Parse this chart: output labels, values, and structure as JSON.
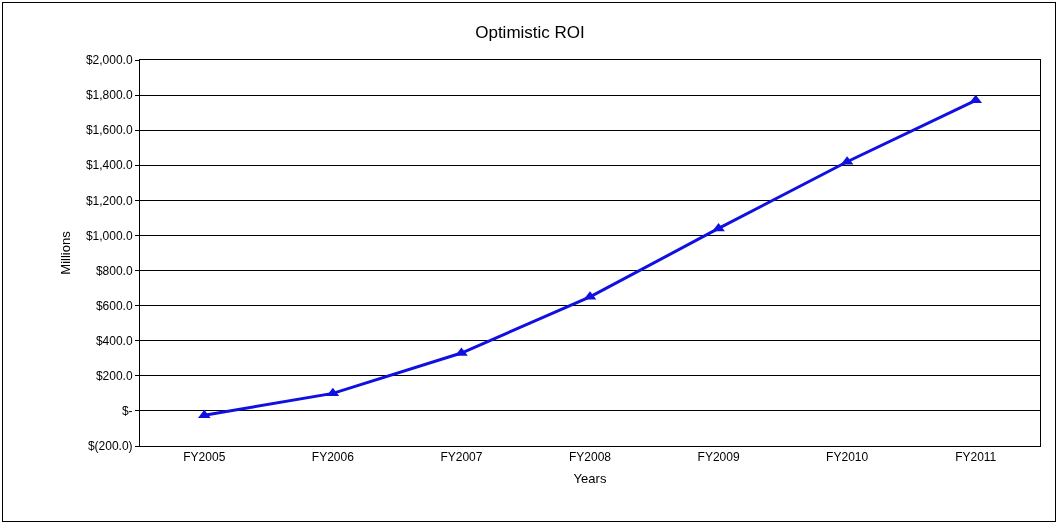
{
  "chart_data": {
    "type": "line",
    "title": "Optimistic ROI",
    "xlabel": "Years",
    "ylabel": "Millions",
    "categories": [
      "FY2005",
      "FY2006",
      "FY2007",
      "FY2008",
      "FY2009",
      "FY2010",
      "FY2011"
    ],
    "series": [
      {
        "color": "#1010e0",
        "values": [
          -25,
          100,
          330,
          650,
          1040,
          1420,
          1770
        ]
      }
    ],
    "ylim": [
      -200,
      2000
    ],
    "yticks": [
      {
        "value": -200,
        "label": "$(200.0)"
      },
      {
        "value": 0,
        "label": "$-"
      },
      {
        "value": 200,
        "label": "$200.0"
      },
      {
        "value": 400,
        "label": "$400.0"
      },
      {
        "value": 600,
        "label": "$600.0"
      },
      {
        "value": 800,
        "label": "$800.0"
      },
      {
        "value": 1000,
        "label": "$1,000.0"
      },
      {
        "value": 1200,
        "label": "$1,200.0"
      },
      {
        "value": 1400,
        "label": "$1,400.0"
      },
      {
        "value": 1600,
        "label": "$1,600.0"
      },
      {
        "value": 1800,
        "label": "$1,800.0"
      },
      {
        "value": 2000,
        "label": "$2,000.0"
      }
    ],
    "grid": "y",
    "marker": "triangle",
    "line_style": "solid",
    "legend": false
  }
}
